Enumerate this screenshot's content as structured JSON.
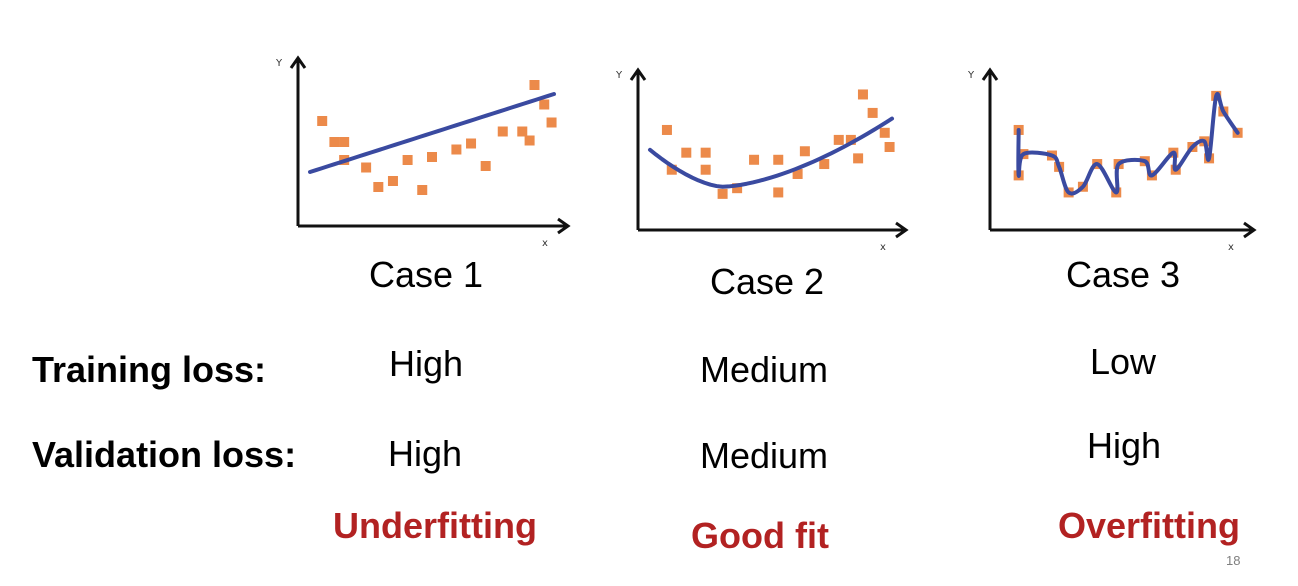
{
  "plots": [
    {
      "title": "Case 1",
      "axis_y": "Y",
      "axis_x": "x",
      "points": [
        [
          0.05,
          0.62
        ],
        [
          0.1,
          0.48
        ],
        [
          0.14,
          0.48
        ],
        [
          0.14,
          0.36
        ],
        [
          0.23,
          0.31
        ],
        [
          0.28,
          0.18
        ],
        [
          0.34,
          0.22
        ],
        [
          0.4,
          0.36
        ],
        [
          0.46,
          0.16
        ],
        [
          0.5,
          0.38
        ],
        [
          0.6,
          0.43
        ],
        [
          0.66,
          0.47
        ],
        [
          0.72,
          0.32
        ],
        [
          0.79,
          0.55
        ],
        [
          0.87,
          0.55
        ],
        [
          0.9,
          0.49
        ],
        [
          0.92,
          0.86
        ],
        [
          0.96,
          0.73
        ],
        [
          0.99,
          0.61
        ]
      ],
      "fit": "linear"
    },
    {
      "title": "Case 2",
      "axis_y": "Y",
      "axis_x": "x",
      "points": [
        [
          0.07,
          0.62
        ],
        [
          0.09,
          0.34
        ],
        [
          0.15,
          0.46
        ],
        [
          0.23,
          0.34
        ],
        [
          0.23,
          0.46
        ],
        [
          0.3,
          0.17
        ],
        [
          0.36,
          0.21
        ],
        [
          0.43,
          0.41
        ],
        [
          0.53,
          0.41
        ],
        [
          0.53,
          0.18
        ],
        [
          0.61,
          0.31
        ],
        [
          0.64,
          0.47
        ],
        [
          0.72,
          0.38
        ],
        [
          0.78,
          0.55
        ],
        [
          0.83,
          0.55
        ],
        [
          0.86,
          0.42
        ],
        [
          0.88,
          0.87
        ],
        [
          0.92,
          0.74
        ],
        [
          0.97,
          0.6
        ],
        [
          0.99,
          0.5
        ]
      ],
      "fit": "quadratic"
    },
    {
      "title": "Case 3",
      "axis_y": "Y",
      "axis_x": "x",
      "points": [
        [
          0.07,
          0.62
        ],
        [
          0.09,
          0.45
        ],
        [
          0.07,
          0.3
        ],
        [
          0.21,
          0.44
        ],
        [
          0.24,
          0.36
        ],
        [
          0.28,
          0.18
        ],
        [
          0.34,
          0.22
        ],
        [
          0.4,
          0.38
        ],
        [
          0.48,
          0.18
        ],
        [
          0.49,
          0.38
        ],
        [
          0.6,
          0.4
        ],
        [
          0.63,
          0.3
        ],
        [
          0.72,
          0.46
        ],
        [
          0.73,
          0.34
        ],
        [
          0.8,
          0.5
        ],
        [
          0.85,
          0.54
        ],
        [
          0.87,
          0.42
        ],
        [
          0.9,
          0.86
        ],
        [
          0.93,
          0.75
        ],
        [
          0.99,
          0.6
        ]
      ],
      "fit": "overfit"
    }
  ],
  "rows": [
    {
      "label": "Training loss:",
      "values": [
        "High",
        "Medium",
        "Low"
      ]
    },
    {
      "label": "Validation loss:",
      "values": [
        "High",
        "Medium",
        "High"
      ]
    }
  ],
  "verdicts": [
    "Underfitting",
    "Good fit",
    "Overfitting"
  ],
  "page_number": "18",
  "colors": {
    "point": "#ec8a4a",
    "line": "#3a4aa0",
    "verdict": "#b22222",
    "axis": "#111111"
  }
}
